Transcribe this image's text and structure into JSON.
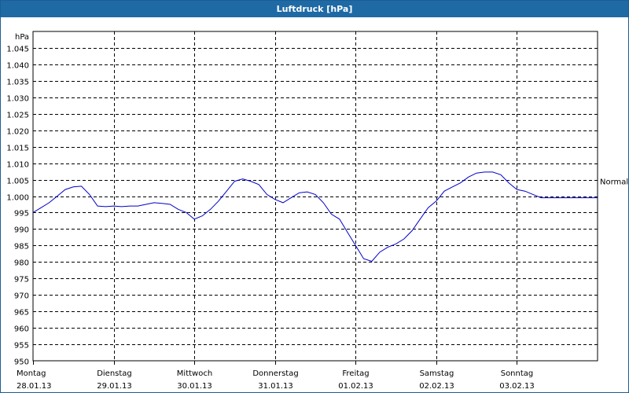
{
  "window": {
    "title": "Luftdruck [hPa]"
  },
  "chart_data": {
    "type": "line",
    "title": "Luftdruck [hPa]",
    "ylabel": "hPa",
    "ylim": [
      950,
      1050
    ],
    "yticks": [
      "1.045",
      "1.040",
      "1.035",
      "1.030",
      "1.025",
      "1.020",
      "1.015",
      "1.010",
      "1.005",
      "1.000",
      "995",
      "990",
      "985",
      "980",
      "975",
      "970",
      "965",
      "960",
      "955",
      "950"
    ],
    "ytick_values": [
      1045,
      1040,
      1035,
      1030,
      1025,
      1020,
      1015,
      1010,
      1005,
      1000,
      995,
      990,
      985,
      980,
      975,
      970,
      965,
      960,
      955,
      950
    ],
    "days": [
      {
        "name": "Montag",
        "date": "28.01.13"
      },
      {
        "name": "Dienstag",
        "date": "29.01.13"
      },
      {
        "name": "Mittwoch",
        "date": "30.01.13"
      },
      {
        "name": "Donnerstag",
        "date": "31.01.13"
      },
      {
        "name": "Freitag",
        "date": "01.02.13"
      },
      {
        "name": "Samstag",
        "date": "02.02.13"
      },
      {
        "name": "Sonntag",
        "date": "03.02.13"
      }
    ],
    "xlim": [
      0,
      7
    ],
    "reference": {
      "label": "Normal",
      "value": 1004.5
    },
    "grid": true,
    "line_color": "#0000cc",
    "series": [
      {
        "x": [
          0,
          0.1,
          0.2,
          0.3,
          0.4,
          0.5,
          0.6,
          0.7,
          0.8,
          0.9,
          1.0,
          1.1,
          1.2,
          1.3,
          1.4,
          1.5,
          1.6,
          1.7,
          1.8,
          1.9,
          2.0,
          2.1,
          2.2,
          2.3,
          2.4,
          2.5,
          2.6,
          2.7,
          2.8,
          2.9,
          3.0,
          3.1,
          3.2,
          3.3,
          3.4,
          3.5,
          3.6,
          3.7,
          3.8,
          3.9,
          4.0,
          4.1,
          4.2,
          4.3,
          4.4,
          4.5,
          4.6,
          4.7,
          4.8,
          4.9,
          5.0,
          5.1,
          5.2,
          5.3,
          5.4,
          5.5,
          5.6,
          5.7,
          5.8,
          5.9,
          6.0,
          6.1,
          6.2,
          6.3,
          6.4,
          6.5,
          6.6,
          6.7,
          6.8,
          6.9,
          7.0
        ],
        "values": [
          995,
          996.5,
          998,
          1000,
          1002,
          1002.8,
          1003,
          1000.5,
          997,
          996.8,
          997,
          996.8,
          997,
          997,
          997.5,
          998,
          997.8,
          997.5,
          996,
          995,
          993,
          994,
          996,
          998.5,
          1001.5,
          1004.5,
          1005.2,
          1004.5,
          1003.5,
          1000.5,
          999,
          998,
          999.5,
          1001,
          1001.3,
          1000.5,
          998,
          994.5,
          993,
          989,
          985,
          981,
          980.2,
          983,
          984.5,
          985.5,
          987,
          989.5,
          993,
          996.5,
          998.5,
          1001.5,
          1002.8,
          1004,
          1005.8,
          1007,
          1007.3,
          1007.3,
          1006.5,
          1004,
          1002,
          1001.5,
          1000.5,
          999.5,
          999.5,
          999.5,
          999.5,
          999.5,
          999.5,
          999.5,
          999.5
        ]
      }
    ]
  }
}
